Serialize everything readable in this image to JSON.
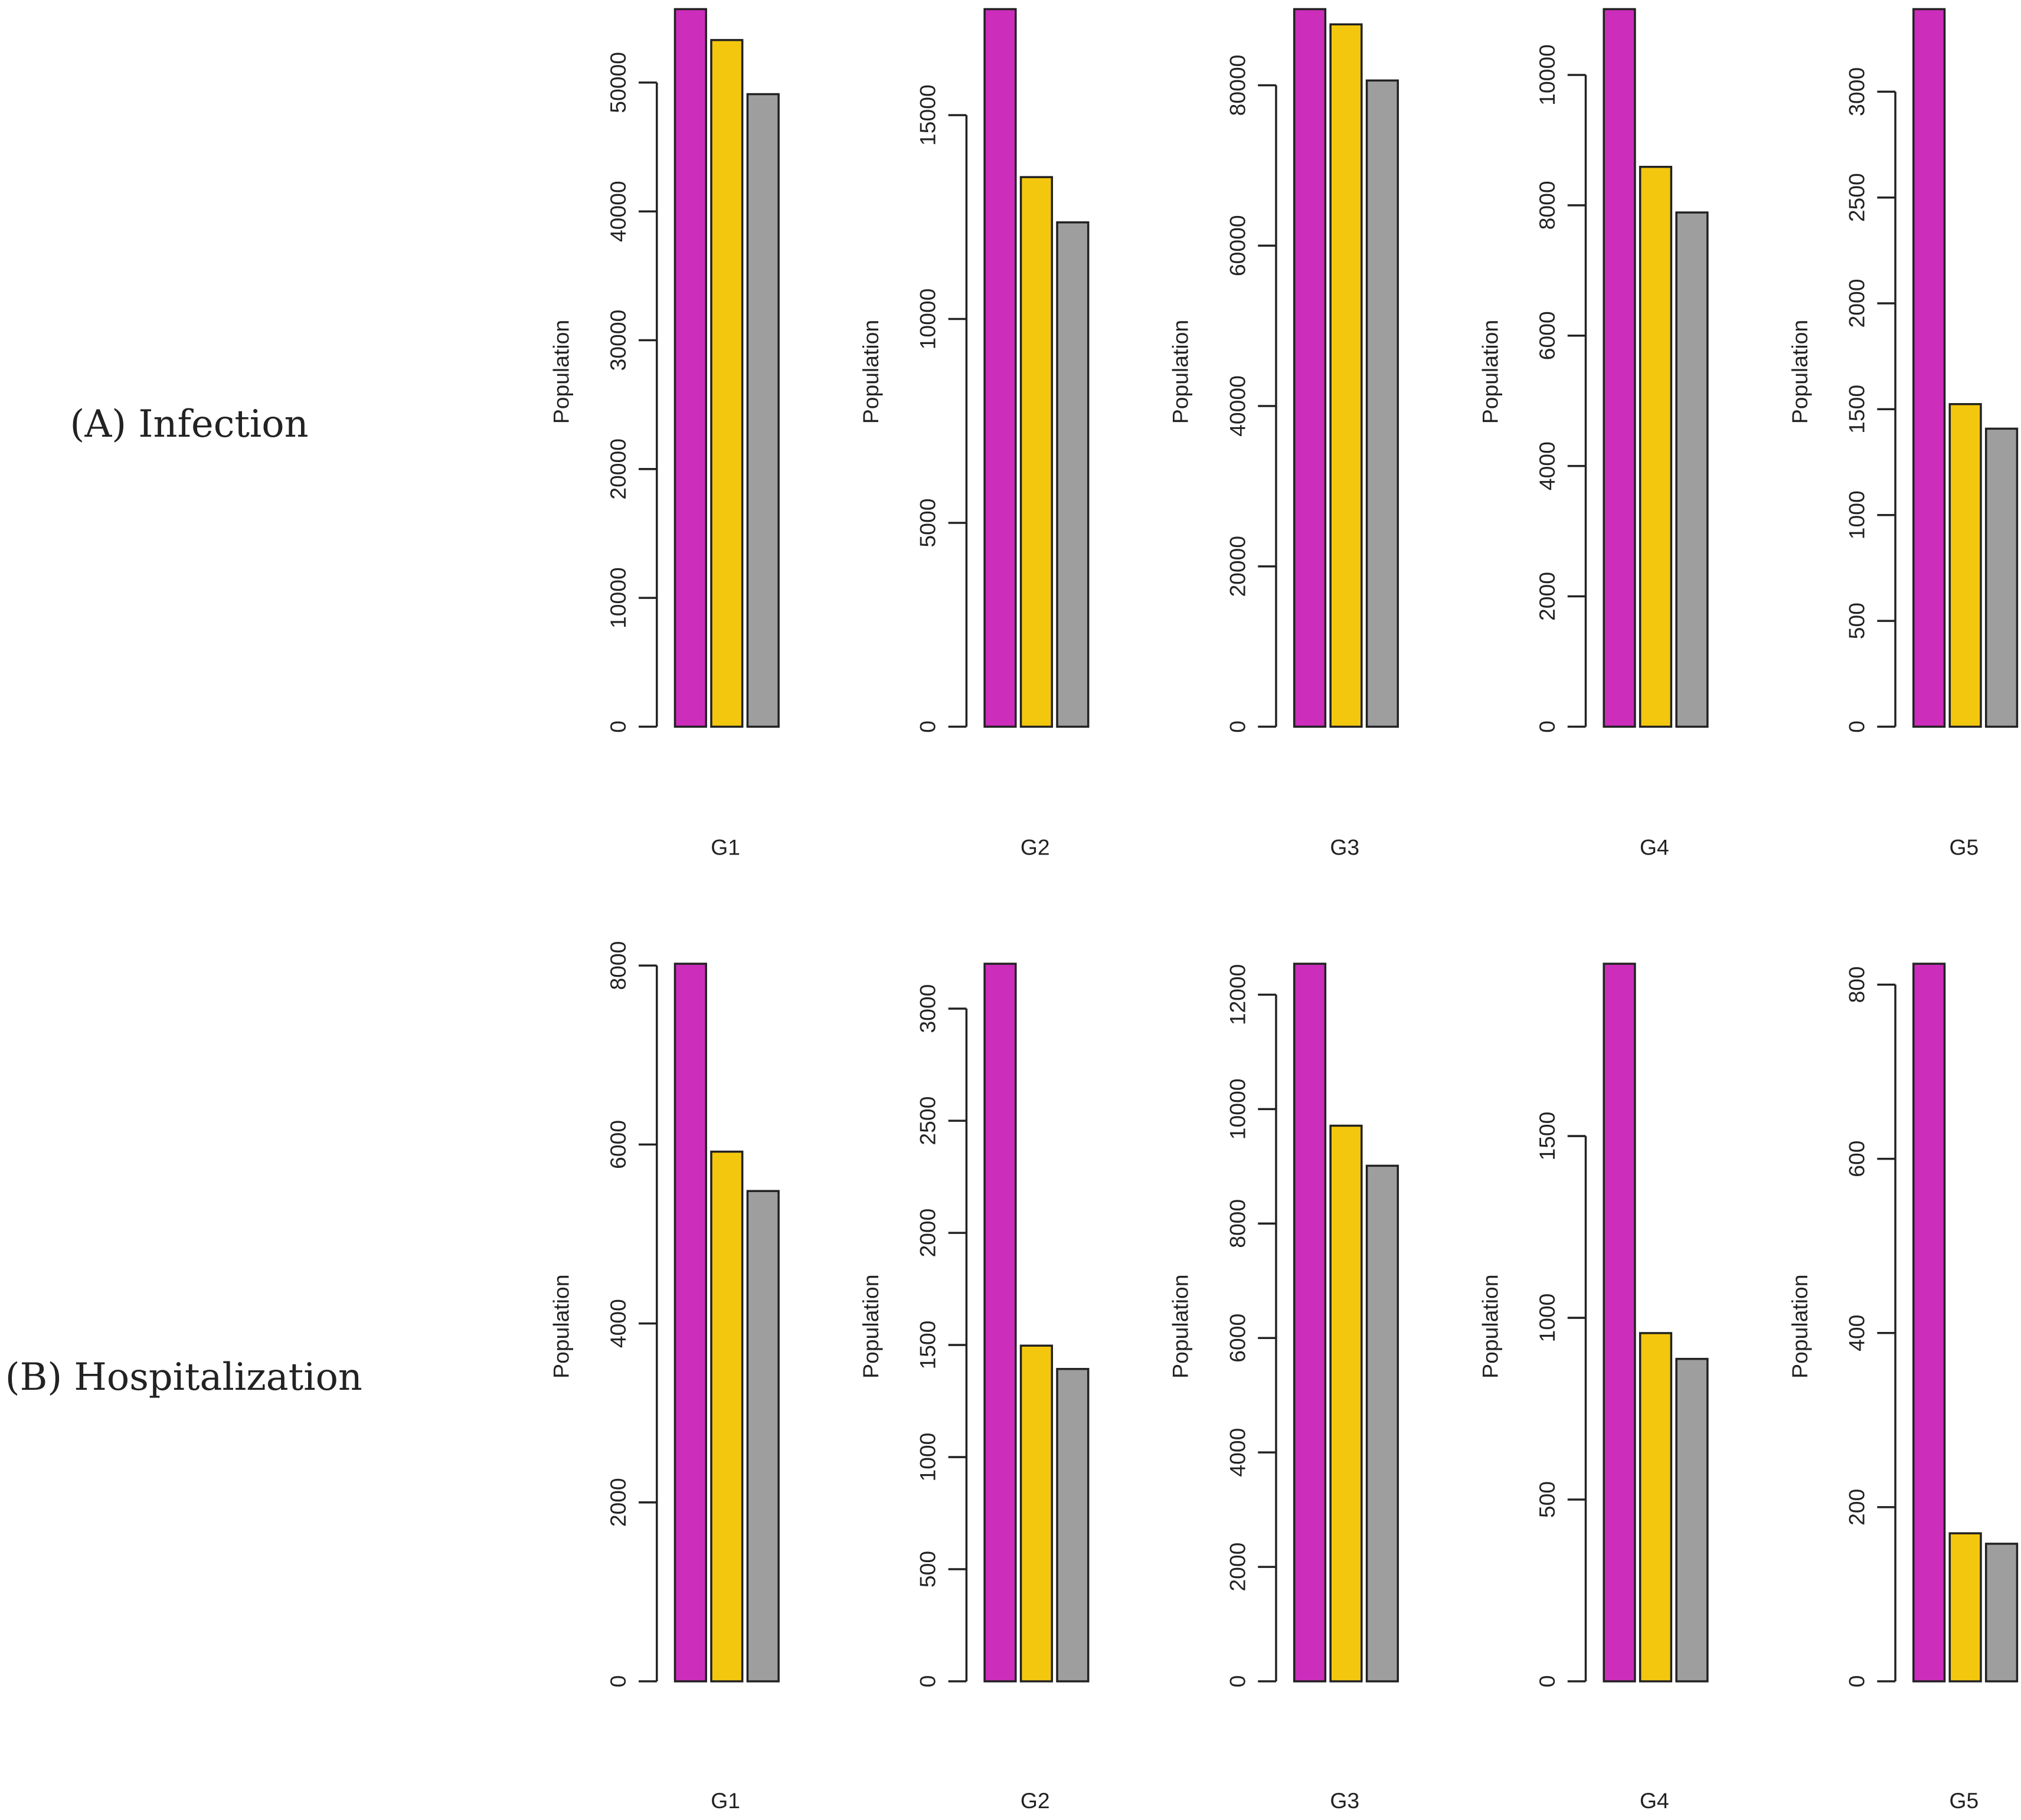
{
  "chart_data": {
    "type": "bar",
    "colors": [
      "#cc2ebb",
      "#f4c70f",
      "#9e9e9e"
    ],
    "rows": [
      {
        "label": "(A)  Infection",
        "panels": [
          {
            "category": "G1",
            "ylabel": "Population",
            "values": [
              55700,
              53300,
              49100
            ],
            "ticks": [
              0,
              10000,
              20000,
              30000,
              40000,
              50000
            ]
          },
          {
            "category": "G2",
            "ylabel": "Population",
            "values": [
              17600,
              13480,
              12370
            ],
            "ticks": [
              0,
              5000,
              10000,
              15000
            ]
          },
          {
            "category": "G3",
            "ylabel": "Population",
            "values": [
              89500,
              87600,
              80600
            ],
            "ticks": [
              0,
              20000,
              40000,
              60000,
              80000
            ]
          },
          {
            "category": "G4",
            "ylabel": "Population",
            "values": [
              11010,
              8590,
              7890
            ],
            "ticks": [
              0,
              2000,
              4000,
              6000,
              8000,
              10000
            ]
          },
          {
            "category": "G5",
            "ylabel": "Population",
            "values": [
              3390,
              1524,
              1408
            ],
            "ticks": [
              0,
              500,
              1000,
              1500,
              2000,
              2500,
              3000
            ]
          }
        ]
      },
      {
        "label": "(B)   Hospitalization",
        "panels": [
          {
            "category": "G1",
            "ylabel": "Population",
            "values": [
              8020,
              5920,
              5480
            ],
            "ticks": [
              0,
              2000,
              4000,
              6000,
              8000
            ]
          },
          {
            "category": "G2",
            "ylabel": "Population",
            "values": [
              3200,
              1497,
              1393
            ],
            "ticks": [
              0,
              500,
              1000,
              1500,
              2000,
              2500,
              3000
            ]
          },
          {
            "category": "G3",
            "ylabel": "Population",
            "values": [
              12540,
              9710,
              9010
            ],
            "ticks": [
              0,
              2000,
              4000,
              6000,
              8000,
              10000,
              12000
            ]
          },
          {
            "category": "G4",
            "ylabel": "Population",
            "values": [
              1974,
              958,
              887
            ],
            "ticks": [
              0,
              500,
              1000,
              1500
            ]
          },
          {
            "category": "G5",
            "ylabel": "Population",
            "values": [
              824,
              170,
              158
            ],
            "ticks": [
              0,
              200,
              400,
              600,
              800
            ]
          }
        ]
      }
    ]
  }
}
